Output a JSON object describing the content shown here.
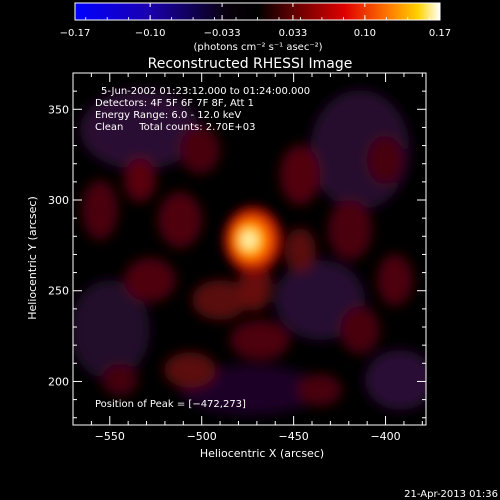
{
  "chart_data": {
    "type": "heatmap",
    "title": "Reconstructed RHESSI Image",
    "xlabel": "Heliocentric X (arcsec)",
    "ylabel": "Heliocentric Y (arcsec)",
    "xlim": [
      -570,
      -378
    ],
    "ylim": [
      176,
      370
    ],
    "x_ticks": [
      -550,
      -500,
      -450,
      -400
    ],
    "y_ticks": [
      200,
      250,
      300,
      350
    ],
    "colorbar": {
      "ticks": [
        "−0.17",
        "−0.10",
        "−0.033",
        "0.033",
        "0.10",
        "0.17"
      ],
      "tick_values": [
        -0.17,
        -0.1,
        -0.033,
        0.033,
        0.1,
        0.17
      ],
      "range": [
        -0.17,
        0.17
      ],
      "unit_label": "(photons cm⁻² s⁻¹ asec⁻²)"
    },
    "annotations": [
      "5-Jun-2002 01:23:12.000 to 01:24:00.000",
      "Detectors: 4F 5F 6F 7F 8F, Att 1",
      "Energy Range: 6.0 - 12.0 keV",
      "Clean     Total counts: 2.70E+03"
    ],
    "peak_label": "Position of Peak = [−472,273]",
    "peak": {
      "x": -472,
      "y": 273
    }
  },
  "footer": {
    "timestamp": "21-Apr-2013 01:36"
  }
}
